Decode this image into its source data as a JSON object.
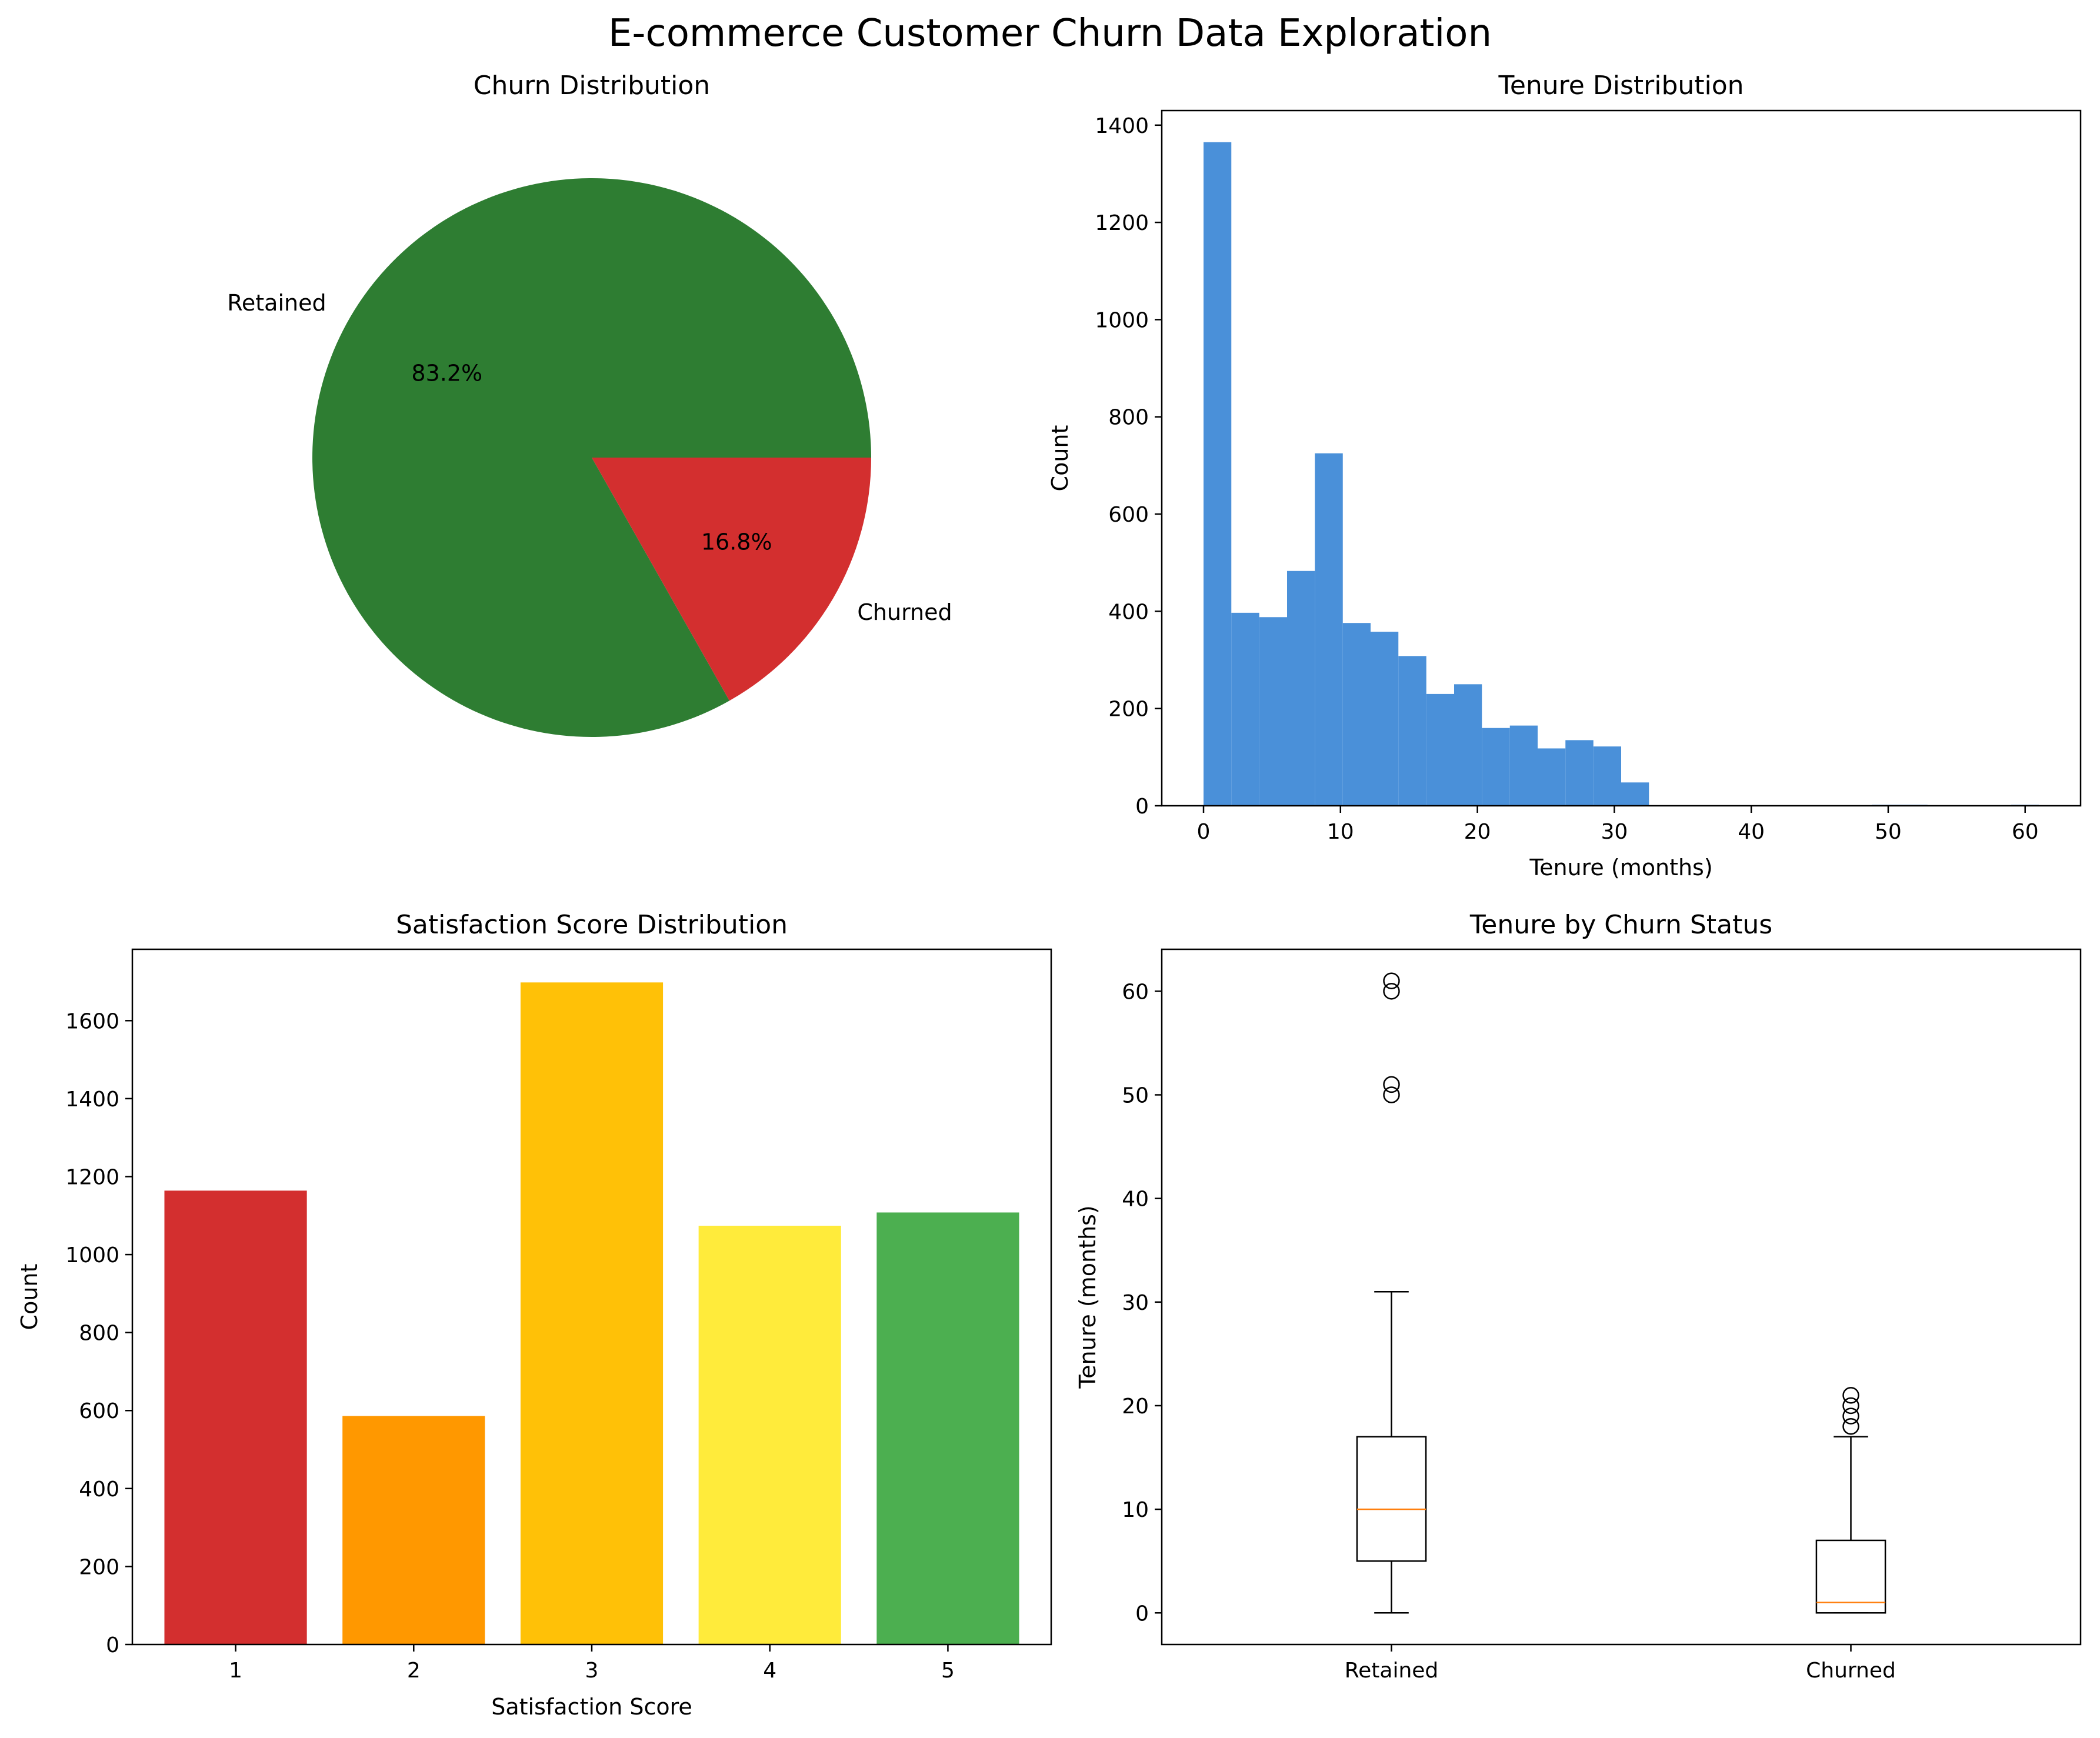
{
  "figure_title": "E-commerce Customer Churn Data Exploration",
  "chart_data": [
    {
      "type": "pie",
      "title": "Churn Distribution",
      "categories": [
        "Retained",
        "Churned"
      ],
      "values": [
        83.2,
        16.8
      ],
      "value_labels": [
        "83.2%",
        "16.8%"
      ],
      "colors": [
        "#2e7d32",
        "#d32f2f"
      ]
    },
    {
      "type": "bar",
      "subtype": "histogram",
      "title": "Tenure Distribution",
      "xlabel": "Tenure (months)",
      "ylabel": "Count",
      "xlim": [
        -3.05,
        64.05
      ],
      "ylim": [
        0,
        1430
      ],
      "xticks": [
        0,
        10,
        20,
        30,
        40,
        50,
        60
      ],
      "yticks": [
        0,
        200,
        400,
        600,
        800,
        1000,
        1200,
        1400
      ],
      "bin_edges": [
        0,
        2.03,
        4.07,
        6.1,
        8.13,
        10.17,
        12.2,
        14.23,
        16.27,
        18.3,
        20.33,
        22.37,
        24.4,
        26.43,
        28.47,
        30.5,
        32.53,
        34.57,
        36.6,
        38.63,
        40.67,
        42.7,
        44.73,
        46.77,
        48.8,
        50.83,
        52.87,
        54.9,
        56.93,
        58.97,
        61.0
      ],
      "counts": [
        1365,
        397,
        388,
        483,
        725,
        376,
        358,
        308,
        230,
        250,
        160,
        165,
        118,
        135,
        122,
        48,
        0,
        0,
        0,
        0,
        0,
        0,
        0,
        0,
        2,
        2,
        0,
        0,
        0,
        2
      ],
      "color": "#4a90d9"
    },
    {
      "type": "bar",
      "title": "Satisfaction Score Distribution",
      "xlabel": "Satisfaction Score",
      "ylabel": "Count",
      "categories": [
        "1",
        "2",
        "3",
        "4",
        "5"
      ],
      "values": [
        1164,
        586,
        1698,
        1074,
        1108
      ],
      "colors": [
        "#d32f2f",
        "#ff9800",
        "#ffc107",
        "#ffeb3b",
        "#4caf50"
      ],
      "ylim": [
        0,
        1783
      ],
      "yticks": [
        0,
        200,
        400,
        600,
        800,
        1000,
        1200,
        1400,
        1600
      ]
    },
    {
      "type": "box",
      "title": "Tenure by Churn Status",
      "ylabel": "Tenure (months)",
      "categories": [
        "Retained",
        "Churned"
      ],
      "ylim": [
        -3.05,
        64.05
      ],
      "yticks": [
        0,
        10,
        20,
        30,
        40,
        50,
        60
      ],
      "boxes": [
        {
          "name": "Retained",
          "whisker_low": 0,
          "q1": 5,
          "median": 10,
          "q3": 17,
          "whisker_high": 31,
          "outliers": [
            50,
            51,
            60,
            61
          ]
        },
        {
          "name": "Churned",
          "whisker_low": 0,
          "q1": 0,
          "median": 1,
          "q3": 7,
          "whisker_high": 17,
          "outliers": [
            18,
            19,
            20,
            21
          ]
        }
      ],
      "median_color": "#ff7f0e"
    }
  ]
}
